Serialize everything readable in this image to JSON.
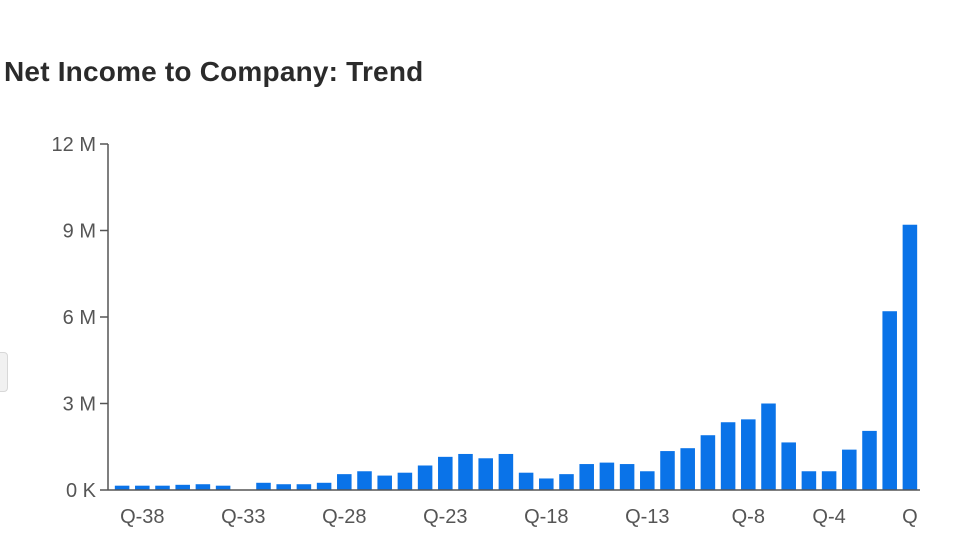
{
  "title": "Net Income to Company: Trend",
  "colors": {
    "bar": "#0a73e8",
    "axis": "#555555",
    "text": "#555555"
  },
  "chart_data": {
    "type": "bar",
    "title": "Net Income to Company: Trend",
    "xlabel": "",
    "ylabel": "",
    "ylim": [
      0,
      12000000
    ],
    "y_ticks": [
      {
        "value": 0,
        "label": "0 K"
      },
      {
        "value": 3000000,
        "label": "3 M"
      },
      {
        "value": 6000000,
        "label": "6 M"
      },
      {
        "value": 9000000,
        "label": "9 M"
      },
      {
        "value": 12000000,
        "label": "12 M"
      }
    ],
    "x_tick_labels": [
      {
        "category": "Q-38",
        "label": "Q-38"
      },
      {
        "category": "Q-33",
        "label": "Q-33"
      },
      {
        "category": "Q-28",
        "label": "Q-28"
      },
      {
        "category": "Q-23",
        "label": "Q-23"
      },
      {
        "category": "Q-18",
        "label": "Q-18"
      },
      {
        "category": "Q-13",
        "label": "Q-13"
      },
      {
        "category": "Q-8",
        "label": "Q-8"
      },
      {
        "category": "Q-4",
        "label": "Q-4"
      },
      {
        "category": "Q",
        "label": "Q"
      }
    ],
    "categories": [
      "Q-39",
      "Q-38",
      "Q-37",
      "Q-36",
      "Q-35",
      "Q-34",
      "Q-33",
      "Q-32",
      "Q-31",
      "Q-30",
      "Q-29",
      "Q-28",
      "Q-27",
      "Q-26",
      "Q-25",
      "Q-24",
      "Q-23",
      "Q-22",
      "Q-21",
      "Q-20",
      "Q-19",
      "Q-18",
      "Q-17",
      "Q-16",
      "Q-15",
      "Q-14",
      "Q-13",
      "Q-12",
      "Q-11",
      "Q-10",
      "Q-9",
      "Q-8",
      "Q-7",
      "Q-6",
      "Q-5",
      "Q-4",
      "Q-3",
      "Q-2",
      "Q-1",
      "Q"
    ],
    "values": [
      150000,
      150000,
      150000,
      180000,
      200000,
      150000,
      0,
      250000,
      200000,
      200000,
      250000,
      550000,
      650000,
      500000,
      600000,
      850000,
      1150000,
      1250000,
      1100000,
      1250000,
      600000,
      400000,
      550000,
      900000,
      950000,
      900000,
      650000,
      1350000,
      1450000,
      1900000,
      2350000,
      2450000,
      3000000,
      1650000,
      650000,
      650000,
      1400000,
      2050000,
      6200000,
      9200000
    ],
    "grid": false,
    "legend": "none"
  }
}
